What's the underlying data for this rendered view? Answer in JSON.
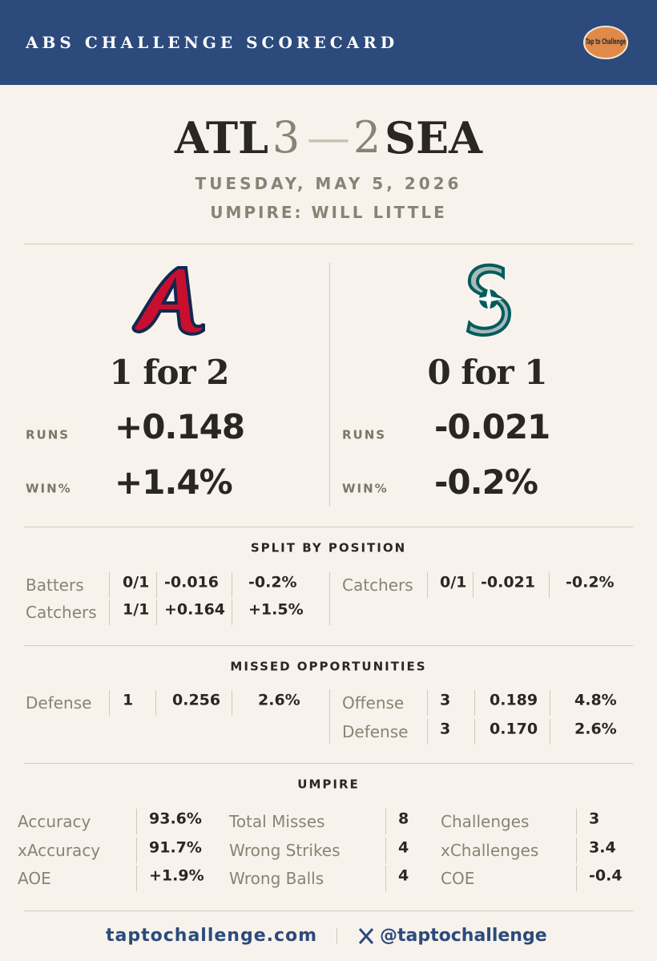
{
  "header": {
    "title": "ABS CHALLENGE SCORECARD",
    "logo": "Tap to Challenge"
  },
  "game": {
    "away": "ATL",
    "away_score": "3",
    "dash": "—",
    "home_score": "2",
    "home": "SEA",
    "date": "TUESDAY, MAY 5, 2026",
    "umpire": "UMPIRE: WILL LITTLE"
  },
  "teams": [
    {
      "record": "1 for 2",
      "runs_label": "RUNS",
      "runs": "+0.148",
      "win_label": "WIN%",
      "win": "+1.4%"
    },
    {
      "record": "0 for 1",
      "runs_label": "RUNS",
      "runs": "-0.021",
      "win_label": "WIN%",
      "win": "-0.2%"
    }
  ],
  "split": {
    "title": "SPLIT BY POSITION",
    "left": [
      [
        "Batters",
        "0/1",
        "-0.016",
        "-0.2%"
      ],
      [
        "Catchers",
        "1/1",
        "+0.164",
        "+1.5%"
      ]
    ],
    "right": [
      [
        "Catchers",
        "0/1",
        "-0.021",
        "-0.2%"
      ]
    ]
  },
  "missed": {
    "title": "MISSED OPPORTUNITIES",
    "left": [
      [
        "Defense",
        "1",
        "0.256",
        "2.6%"
      ]
    ],
    "right": [
      [
        "Offense",
        "3",
        "0.189",
        "4.8%"
      ],
      [
        "Defense",
        "3",
        "0.170",
        "2.6%"
      ]
    ]
  },
  "umpire": {
    "title": "UMPIRE",
    "columns": [
      [
        [
          "Accuracy",
          "93.6%"
        ],
        [
          "xAccuracy",
          "91.7%"
        ],
        [
          "AOE",
          "+1.9%"
        ]
      ],
      [
        [
          "Total Misses",
          "8"
        ],
        [
          "Wrong Strikes",
          "4"
        ],
        [
          "Wrong Balls",
          "4"
        ]
      ],
      [
        [
          "Challenges",
          "3"
        ],
        [
          "xChallenges",
          "3.4"
        ],
        [
          "COE",
          "-0.4"
        ]
      ]
    ]
  },
  "footer": {
    "site": "taptochallenge.com",
    "handle": "@taptochallenge"
  }
}
